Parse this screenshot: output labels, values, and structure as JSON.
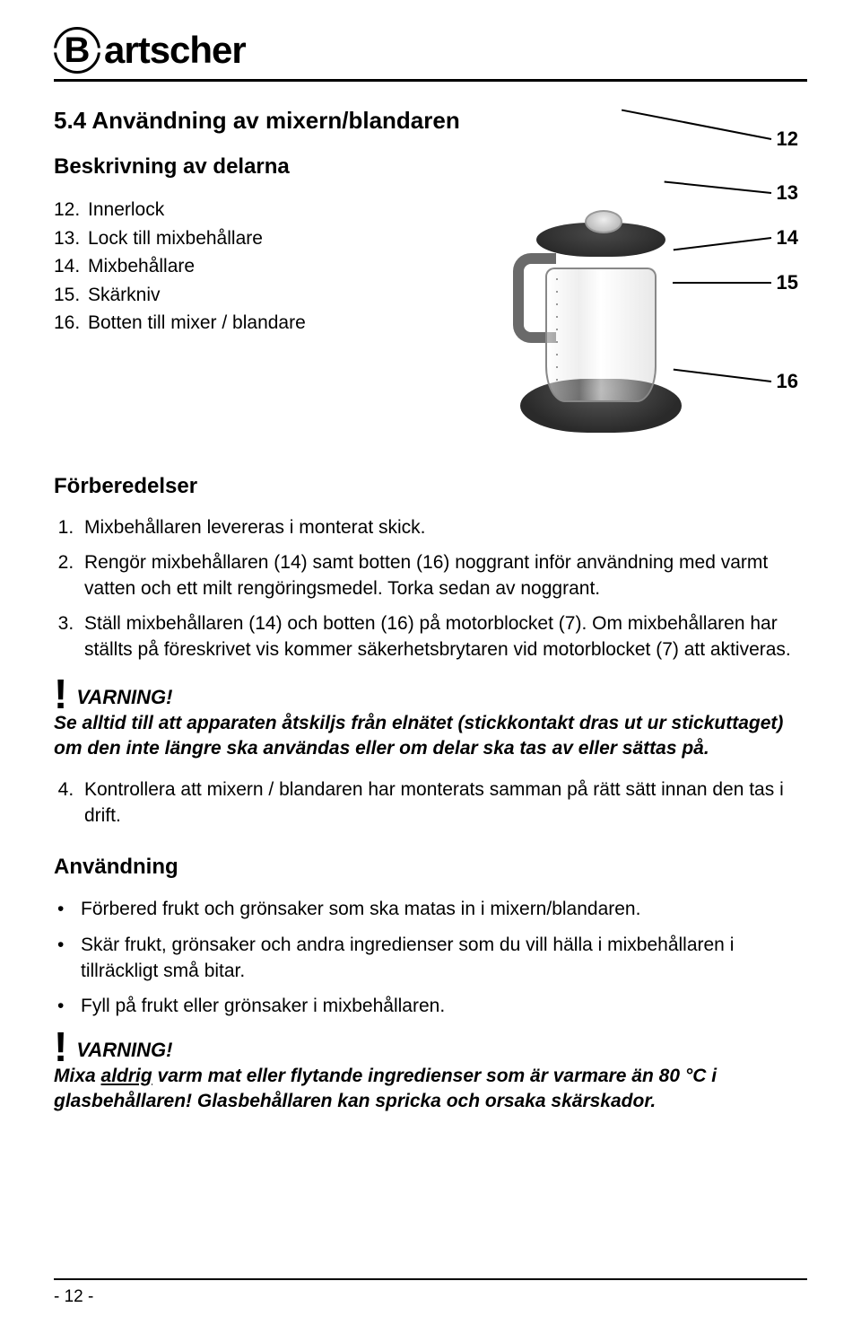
{
  "logo": {
    "letter": "B",
    "brand": "artscher"
  },
  "section_title": "5.4 Användning av mixern/blandaren",
  "subhead_parts": "Beskrivning av delarna",
  "parts": [
    {
      "num": "12.",
      "label": "Innerlock"
    },
    {
      "num": "13.",
      "label": "Lock till mixbehållare"
    },
    {
      "num": "14.",
      "label": "Mixbehållare"
    },
    {
      "num": "15.",
      "label": "Skärkniv"
    },
    {
      "num": "16.",
      "label": "Botten till mixer / blandare"
    }
  ],
  "callouts": {
    "c12": "12",
    "c13": "13",
    "c14": "14",
    "c15": "15",
    "c16": "16"
  },
  "subhead_prep": "Förberedelser",
  "prep_steps": [
    "Mixbehållaren levereras i monterat skick.",
    "Rengör mixbehållaren (14) samt botten (16) noggrant inför användning med varmt vatten och ett milt rengöringsmedel. Torka sedan av noggrant.",
    "Ställ mixbehållaren (14) och botten (16) på motorblocket (7). Om mixbehållaren har ställts på föreskrivet vis kommer säkerhetsbrytaren vid motorblocket (7) att aktiveras."
  ],
  "warning1": {
    "label": "VARNING!",
    "text": "Se alltid till att apparaten åtskiljs från elnätet (stickkontakt dras ut ur stickuttaget) om den inte längre ska användas eller om delar ska tas av eller sättas på."
  },
  "prep_step4_num": "4.",
  "prep_step4": "Kontrollera att mixern / blandaren har monterats samman på rätt sätt innan den tas i drift.",
  "subhead_use": "Användning",
  "use_bullets": [
    "Förbered frukt och grönsaker som ska matas in i mixern/blandaren.",
    "Skär frukt, grönsaker och andra ingredienser som du vill hälla i mixbehållaren i tillräckligt små bitar.",
    "Fyll på frukt eller grönsaker i mixbehållaren."
  ],
  "warning2": {
    "label": "VARNING!",
    "pre": "Mixa ",
    "underline": "aldrig",
    "post": " varm mat eller flytande ingredienser som är varmare än 80 °C i glasbehållaren! Glasbehållaren kan spricka och orsaka skärskador."
  },
  "page_number": "- 12 -"
}
